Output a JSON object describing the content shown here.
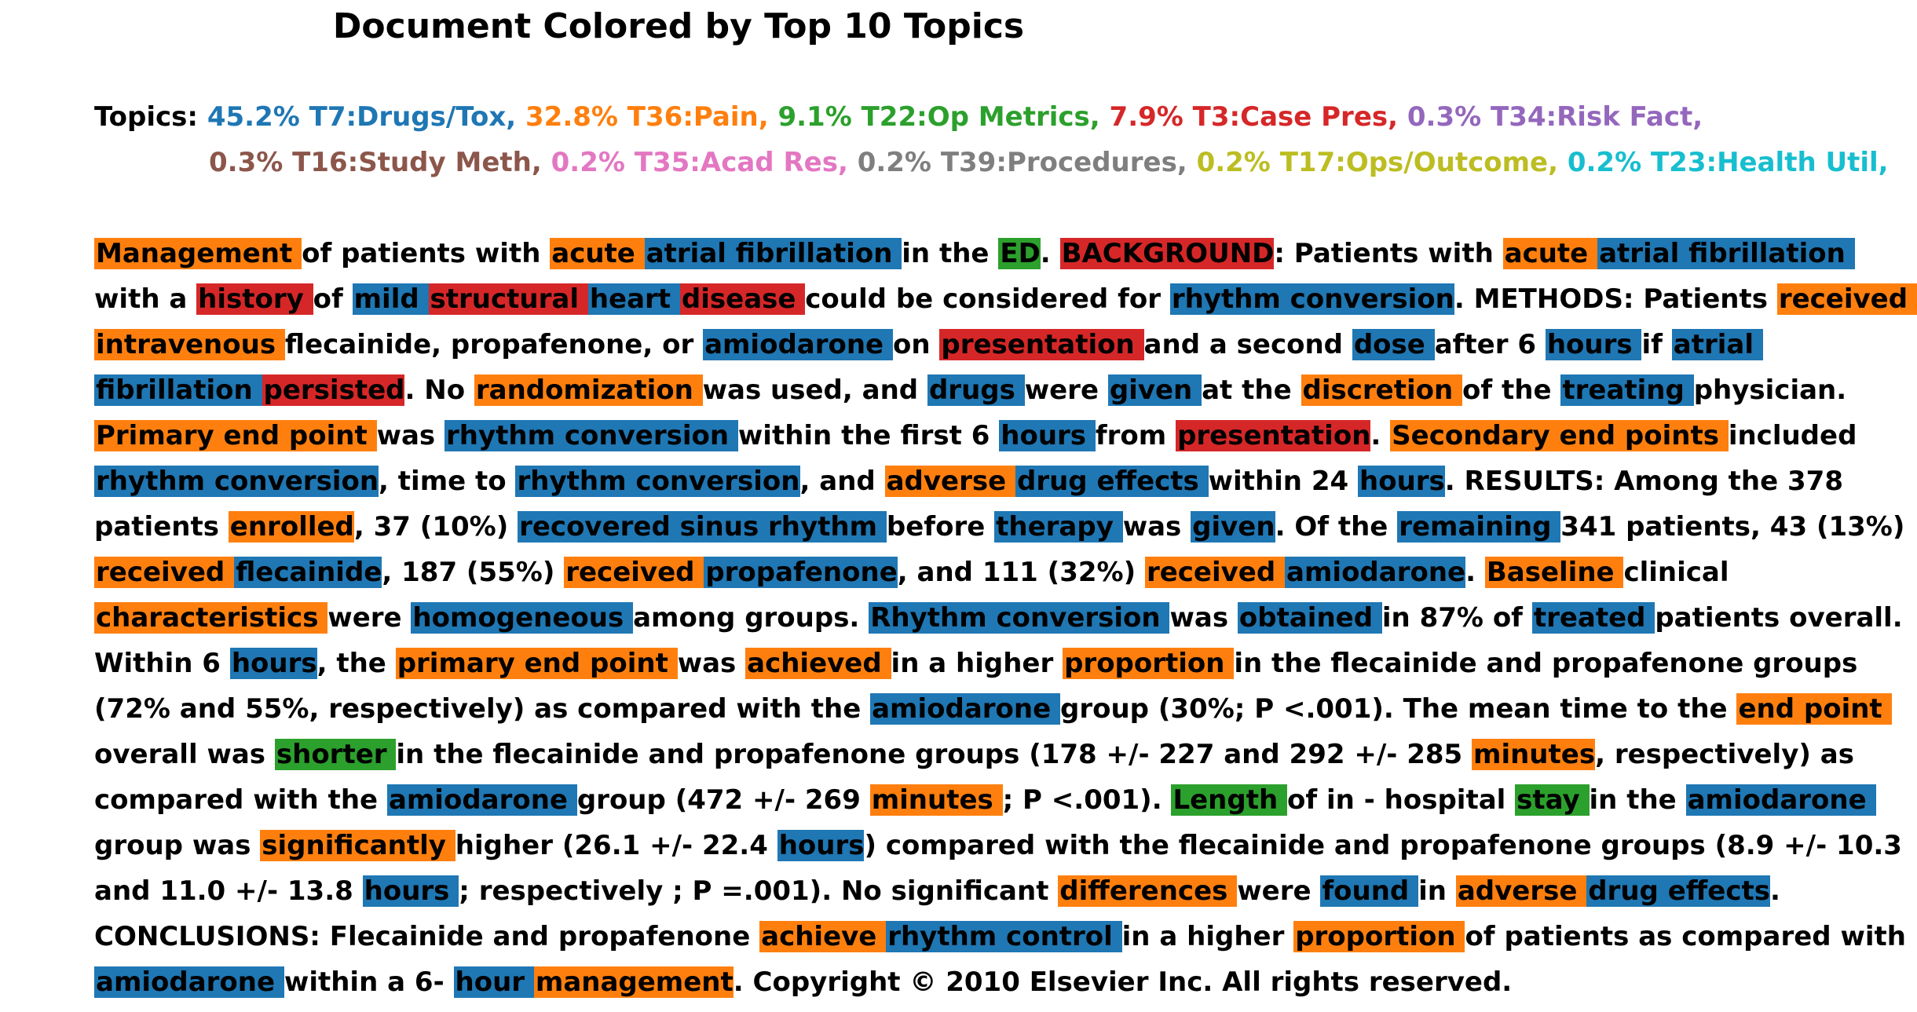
{
  "title": "Document Colored by Top 10 Topics",
  "legend": {
    "label": "Topics:",
    "items": [
      {
        "text": "45.2% T7:Drugs/Tox,",
        "color": "#1f77b4"
      },
      {
        "text": "32.8% T36:Pain,",
        "color": "#ff7f0e"
      },
      {
        "text": "9.1% T22:Op Metrics,",
        "color": "#2ca02c"
      },
      {
        "text": "7.9% T3:Case Pres,",
        "color": "#d62728"
      },
      {
        "text": "0.3% T34:Risk Fact,",
        "color": "#9467bd"
      },
      {
        "text": "0.3% T16:Study Meth,",
        "color": "#8c564b"
      },
      {
        "text": "0.2% T35:Acad Res,",
        "color": "#e377c2"
      },
      {
        "text": "0.2% T39:Procedures,",
        "color": "#7f7f7f"
      },
      {
        "text": "0.2% T17:Ops/Outcome,",
        "color": "#bcbd22"
      },
      {
        "text": "0.2% T23:Health Util,",
        "color": "#17becf"
      }
    ]
  },
  "topic_colors": {
    "b": "#1f77b4",
    "o": "#ff7f0e",
    "g": "#2ca02c",
    "r": "#d62728"
  },
  "lines": [
    [
      [
        "Management ",
        "o"
      ],
      [
        "of patients with ",
        ""
      ],
      [
        "acute ",
        "o"
      ],
      [
        "atrial fibrillation ",
        "b"
      ],
      [
        "in the ",
        ""
      ],
      [
        "ED",
        "g"
      ],
      [
        ". ",
        ""
      ],
      [
        "BACKGROUND",
        "r"
      ],
      [
        ": Patients with ",
        ""
      ],
      [
        "acute ",
        "o"
      ],
      [
        "atrial fibrillation ",
        "b"
      ]
    ],
    [
      [
        "with a ",
        ""
      ],
      [
        "history ",
        "r"
      ],
      [
        "of ",
        ""
      ],
      [
        "mild ",
        "b"
      ],
      [
        "structural ",
        "r"
      ],
      [
        "heart ",
        "b"
      ],
      [
        "disease ",
        "r"
      ],
      [
        "could be considered for ",
        ""
      ],
      [
        "rhythm conversion",
        "b"
      ],
      [
        ". METHODS: Patients ",
        ""
      ],
      [
        "received ",
        "o"
      ]
    ],
    [
      [
        "intravenous ",
        "o"
      ],
      [
        "flecainide, propafenone, or ",
        ""
      ],
      [
        "amiodarone ",
        "b"
      ],
      [
        "on ",
        ""
      ],
      [
        "presentation ",
        "r"
      ],
      [
        "and a second ",
        ""
      ],
      [
        "dose ",
        "b"
      ],
      [
        "after 6 ",
        ""
      ],
      [
        "hours ",
        "b"
      ],
      [
        "if ",
        ""
      ],
      [
        "atrial ",
        "b"
      ]
    ],
    [
      [
        "fibrillation ",
        "b"
      ],
      [
        "persisted",
        "r"
      ],
      [
        ". No ",
        ""
      ],
      [
        "randomization ",
        "o"
      ],
      [
        "was used, and ",
        ""
      ],
      [
        "drugs ",
        "b"
      ],
      [
        "were ",
        ""
      ],
      [
        "given ",
        "b"
      ],
      [
        "at the ",
        ""
      ],
      [
        "discretion ",
        "o"
      ],
      [
        "of the ",
        ""
      ],
      [
        "treating ",
        "b"
      ],
      [
        "physician.",
        ""
      ]
    ],
    [
      [
        "Primary end point ",
        "o"
      ],
      [
        "was ",
        ""
      ],
      [
        "rhythm conversion ",
        "b"
      ],
      [
        "within the first 6 ",
        ""
      ],
      [
        "hours ",
        "b"
      ],
      [
        "from ",
        ""
      ],
      [
        "presentation",
        "r"
      ],
      [
        ". ",
        ""
      ],
      [
        "Secondary end points ",
        "o"
      ],
      [
        "included",
        ""
      ]
    ],
    [
      [
        "rhythm conversion",
        "b"
      ],
      [
        ", time to ",
        ""
      ],
      [
        "rhythm conversion",
        "b"
      ],
      [
        ", and ",
        ""
      ],
      [
        "adverse ",
        "o"
      ],
      [
        "drug effects ",
        "b"
      ],
      [
        "within 24 ",
        ""
      ],
      [
        "hours",
        "b"
      ],
      [
        ". RESULTS: Among the 378",
        ""
      ]
    ],
    [
      [
        "patients ",
        ""
      ],
      [
        "enrolled",
        "o"
      ],
      [
        ", 37 (10%) ",
        ""
      ],
      [
        "recovered sinus rhythm ",
        "b"
      ],
      [
        "before ",
        ""
      ],
      [
        "therapy ",
        "b"
      ],
      [
        "was ",
        ""
      ],
      [
        "given",
        "b"
      ],
      [
        ". Of the ",
        ""
      ],
      [
        "remaining ",
        "b"
      ],
      [
        "341 patients, 43 (13%)",
        ""
      ]
    ],
    [
      [
        "received ",
        "o"
      ],
      [
        "flecainide",
        "b"
      ],
      [
        ", 187 (55%) ",
        ""
      ],
      [
        "received ",
        "o"
      ],
      [
        "propafenone",
        "b"
      ],
      [
        ", and 111 (32%) ",
        ""
      ],
      [
        "received ",
        "o"
      ],
      [
        "amiodarone",
        "b"
      ],
      [
        ". ",
        ""
      ],
      [
        "Baseline ",
        "o"
      ],
      [
        "clinical",
        ""
      ]
    ],
    [
      [
        "characteristics ",
        "o"
      ],
      [
        "were ",
        ""
      ],
      [
        "homogeneous ",
        "b"
      ],
      [
        "among groups. ",
        ""
      ],
      [
        "Rhythm conversion ",
        "b"
      ],
      [
        "was ",
        ""
      ],
      [
        "obtained ",
        "b"
      ],
      [
        "in 87% of ",
        ""
      ],
      [
        "treated ",
        "b"
      ],
      [
        "patients overall.",
        ""
      ]
    ],
    [
      [
        "Within 6 ",
        ""
      ],
      [
        "hours",
        "b"
      ],
      [
        ", the ",
        ""
      ],
      [
        "primary end point ",
        "o"
      ],
      [
        "was ",
        ""
      ],
      [
        "achieved ",
        "o"
      ],
      [
        "in a higher ",
        ""
      ],
      [
        "proportion ",
        "o"
      ],
      [
        "in the flecainide and propafenone groups",
        ""
      ]
    ],
    [
      [
        "(72% and 55%, respectively) as compared with the ",
        ""
      ],
      [
        "amiodarone ",
        "b"
      ],
      [
        "group (30%; P <.001). The mean time to the ",
        ""
      ],
      [
        "end point ",
        "o"
      ]
    ],
    [
      [
        "overall was ",
        ""
      ],
      [
        "shorter ",
        "g"
      ],
      [
        "in the flecainide and propafenone groups (178 +/- 227 and 292 +/- 285 ",
        ""
      ],
      [
        "minutes",
        "o"
      ],
      [
        ", respectively) as",
        ""
      ]
    ],
    [
      [
        "compared with the ",
        ""
      ],
      [
        "amiodarone ",
        "b"
      ],
      [
        "group (472 +/- 269 ",
        ""
      ],
      [
        "minutes ",
        "o"
      ],
      [
        "; P <.001). ",
        ""
      ],
      [
        "Length ",
        "g"
      ],
      [
        "of in - hospital ",
        ""
      ],
      [
        "stay ",
        "g"
      ],
      [
        "in the ",
        ""
      ],
      [
        "amiodarone ",
        "b"
      ]
    ],
    [
      [
        "group was ",
        ""
      ],
      [
        "significantly ",
        "o"
      ],
      [
        "higher (26.1 +/- 22.4 ",
        ""
      ],
      [
        "hours",
        "b"
      ],
      [
        ") compared with the flecainide and propafenone groups (8.9 +/- 10.3",
        ""
      ]
    ],
    [
      [
        "and 11.0 +/- 13.8 ",
        ""
      ],
      [
        "hours ",
        "b"
      ],
      [
        "; respectively ; P =.001). No significant ",
        ""
      ],
      [
        "differences ",
        "o"
      ],
      [
        "were ",
        ""
      ],
      [
        "found ",
        "b"
      ],
      [
        "in ",
        ""
      ],
      [
        "adverse ",
        "o"
      ],
      [
        "drug effects",
        "b"
      ],
      [
        ".",
        ""
      ]
    ],
    [
      [
        "CONCLUSIONS: Flecainide and propafenone ",
        ""
      ],
      [
        "achieve ",
        "o"
      ],
      [
        "rhythm control ",
        "b"
      ],
      [
        "in a higher ",
        ""
      ],
      [
        "proportion ",
        "o"
      ],
      [
        "of patients as compared with",
        ""
      ]
    ],
    [
      [
        "amiodarone ",
        "b"
      ],
      [
        "within a 6- ",
        ""
      ],
      [
        "hour ",
        "b"
      ],
      [
        "management",
        "o"
      ],
      [
        ". Copyright © 2010 Elsevier Inc. All rights reserved.",
        ""
      ]
    ]
  ]
}
